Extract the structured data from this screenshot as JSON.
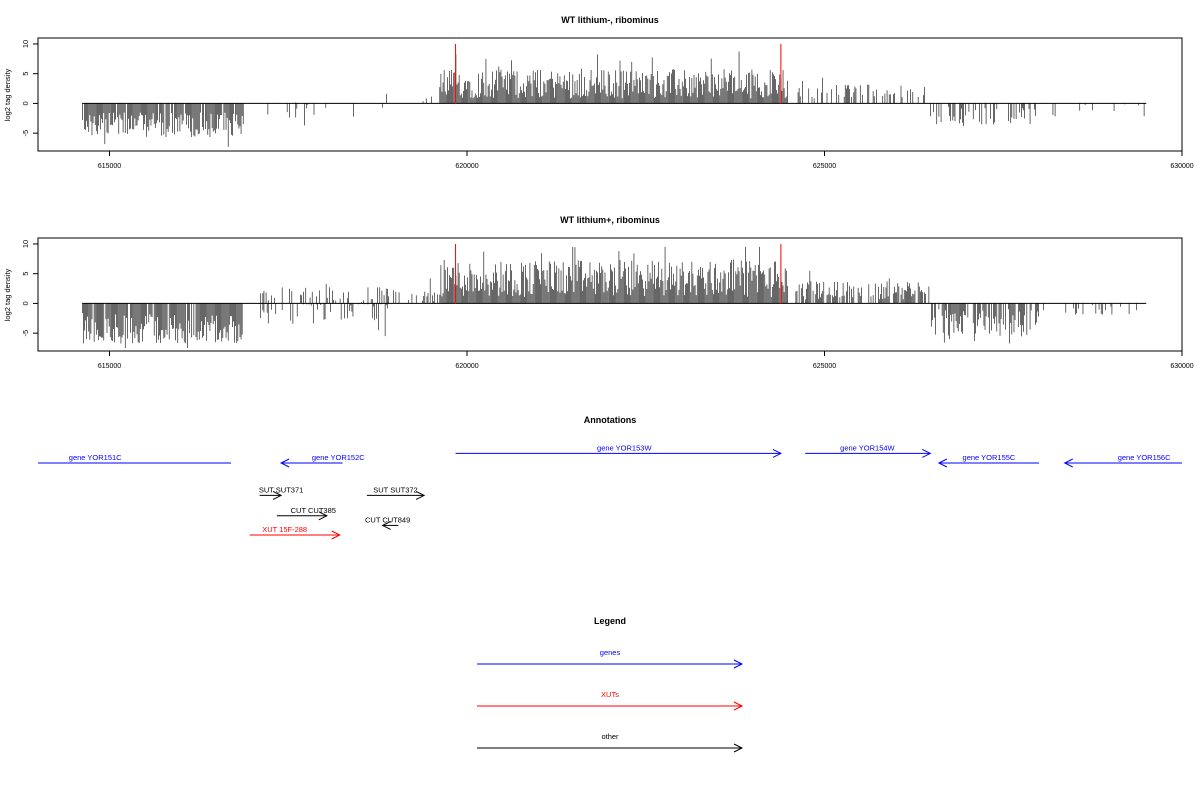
{
  "chart_data": [
    {
      "type": "bar",
      "title": "WT lithium-, ribominus",
      "ylabel": "log2 tag density",
      "xlabel": "",
      "xlim": [
        614000,
        630000
      ],
      "ylim": [
        -8,
        11
      ],
      "x_ticks": [
        615000,
        620000,
        625000,
        630000
      ],
      "y_ticks": [
        -5,
        0,
        5,
        10
      ],
      "grid": false,
      "markers": [
        619840,
        624390
      ],
      "segments": [
        {
          "start": 614620,
          "end": 616880,
          "sign": -1,
          "mean": 3.6,
          "amp": 1.6,
          "density": 0.9
        },
        {
          "start": 617300,
          "end": 617600,
          "sign": 1,
          "mean": 1.0,
          "amp": 1.0,
          "density": 0.1
        },
        {
          "start": 617200,
          "end": 618900,
          "sign": -1,
          "mean": 1.2,
          "amp": 1.0,
          "density": 0.1
        },
        {
          "start": 618800,
          "end": 619600,
          "sign": 1,
          "mean": 0.8,
          "amp": 0.7,
          "density": 0.1
        },
        {
          "start": 619620,
          "end": 624480,
          "sign": 1,
          "mean": 3.3,
          "amp": 1.9,
          "density": 1.0
        },
        {
          "start": 624600,
          "end": 626500,
          "sign": 1,
          "mean": 2.0,
          "amp": 0.9,
          "density": 0.35
        },
        {
          "start": 626480,
          "end": 628000,
          "sign": -1,
          "mean": 2.2,
          "amp": 1.3,
          "density": 0.4
        },
        {
          "start": 628000,
          "end": 629500,
          "sign": -1,
          "mean": 1.2,
          "amp": 0.8,
          "density": 0.08
        }
      ]
    },
    {
      "type": "bar",
      "title": "WT lithium+, ribominus",
      "ylabel": "log2 tag density",
      "xlabel": "",
      "xlim": [
        614000,
        630000
      ],
      "ylim": [
        -8,
        11
      ],
      "x_ticks": [
        615000,
        620000,
        625000,
        630000
      ],
      "y_ticks": [
        -5,
        0,
        5,
        10
      ],
      "grid": false,
      "markers": [
        619840,
        624390
      ],
      "segments": [
        {
          "start": 614620,
          "end": 616880,
          "sign": -1,
          "mean": 4.2,
          "amp": 2.0,
          "density": 0.95
        },
        {
          "start": 617100,
          "end": 619600,
          "sign": 1,
          "mean": 1.5,
          "amp": 1.0,
          "density": 0.35
        },
        {
          "start": 617100,
          "end": 618900,
          "sign": -1,
          "mean": 1.5,
          "amp": 1.5,
          "density": 0.35
        },
        {
          "start": 619620,
          "end": 624480,
          "sign": 1,
          "mean": 4.2,
          "amp": 2.4,
          "density": 1.0
        },
        {
          "start": 624600,
          "end": 626500,
          "sign": 1,
          "mean": 2.2,
          "amp": 1.2,
          "density": 0.7
        },
        {
          "start": 626480,
          "end": 628000,
          "sign": -1,
          "mean": 3.2,
          "amp": 1.8,
          "density": 0.7
        },
        {
          "start": 628000,
          "end": 629500,
          "sign": -1,
          "mean": 1.2,
          "amp": 0.7,
          "density": 0.12
        }
      ]
    }
  ],
  "annotations": {
    "title": "Annotations",
    "features": [
      {
        "label": "gene YOR151C",
        "color": "#0000ff",
        "start": 614000,
        "end": 616700,
        "row": 0,
        "direction": "none",
        "label_x": 614800
      },
      {
        "label": "gene YOR152C",
        "color": "#0000ff",
        "start": 617400,
        "end": 618260,
        "row": 0,
        "direction": "left",
        "label_x": 618200
      },
      {
        "label": "gene YOR153W",
        "color": "#0000ff",
        "start": 619840,
        "end": 624390,
        "row": -0.4,
        "direction": "right",
        "label_x": 622200
      },
      {
        "label": "gene YOR154W",
        "color": "#0000ff",
        "start": 624730,
        "end": 626480,
        "row": -0.4,
        "direction": "right",
        "label_x": 625600
      },
      {
        "label": "gene YOR155C",
        "color": "#0000ff",
        "start": 626600,
        "end": 628000,
        "row": 0,
        "direction": "left",
        "label_x": 627300
      },
      {
        "label": "gene YOR156C",
        "color": "#0000ff",
        "start": 628360,
        "end": 630000,
        "row": 0,
        "direction": "left",
        "label_x": 629470
      },
      {
        "label": "SUT SUT371",
        "color": "#000000",
        "start": 617100,
        "end": 617400,
        "row": 1.35,
        "direction": "right",
        "label_x": 617400
      },
      {
        "label": "SUT SUT372",
        "color": "#000000",
        "start": 618600,
        "end": 619400,
        "row": 1.35,
        "direction": "right",
        "label_x": 619000
      },
      {
        "label": "CUT CUT385",
        "color": "#000000",
        "start": 617340,
        "end": 618040,
        "row": 2.2,
        "direction": "right",
        "label_x": 617850
      },
      {
        "label": "CUT CUT849",
        "color": "#000000",
        "start": 618820,
        "end": 619040,
        "row": 2.6,
        "direction": "left",
        "label_x": 618890
      },
      {
        "label": "XUT 15F-288",
        "color": "#ff0000",
        "start": 616960,
        "end": 618220,
        "row": 3.0,
        "direction": "right",
        "label_x": 617450
      }
    ]
  },
  "legend": {
    "title": "Legend",
    "items": [
      {
        "label": "genes",
        "color": "#0000ff"
      },
      {
        "label": "XUTs",
        "color": "#ff0000"
      },
      {
        "label": "other",
        "color": "#000000"
      }
    ]
  }
}
